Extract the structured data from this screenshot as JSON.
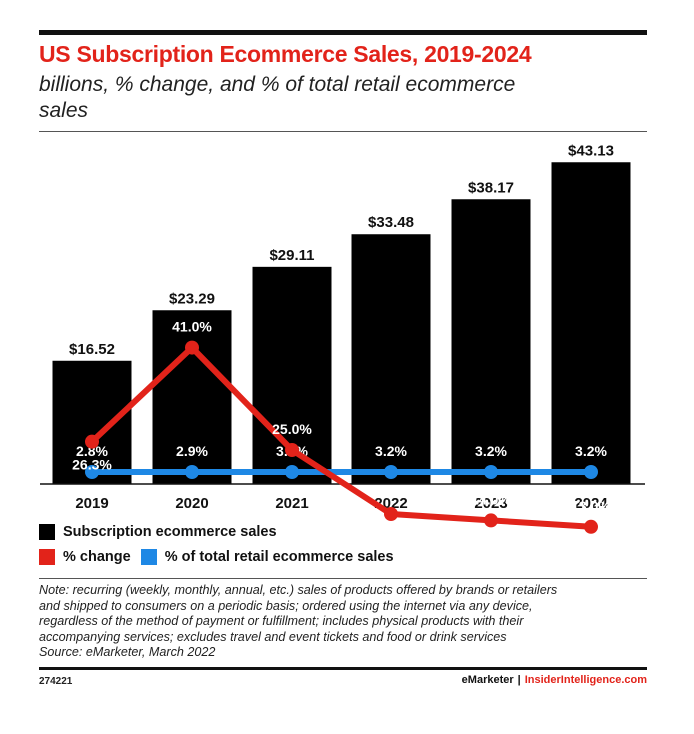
{
  "header": {
    "title": "US Subscription Ecommerce Sales, 2019-2024",
    "subtitle_line1": "billions, % change, and % of total retail ecommerce",
    "subtitle_line2": "sales"
  },
  "chart_data": {
    "type": "bar",
    "categories": [
      "2019",
      "2020",
      "2021",
      "2022",
      "2023",
      "2024"
    ],
    "series": [
      {
        "name": "Subscription ecommerce sales",
        "type": "bar",
        "values": [
          16.52,
          23.29,
          29.11,
          33.48,
          38.17,
          43.13
        ],
        "labels": [
          "$16.52",
          "$23.29",
          "$29.11",
          "$33.48",
          "$38.17",
          "$43.13"
        ],
        "color": "#000000"
      },
      {
        "name": "% change",
        "type": "line",
        "values": [
          26.3,
          41.0,
          25.0,
          15.0,
          14.0,
          13.0
        ],
        "labels": [
          "26.3%",
          "41.0%",
          "25.0%",
          "15.0%",
          "14.0%",
          "13.0%"
        ],
        "color": "#e2231a"
      },
      {
        "name": "% of total retail ecommerce sales",
        "type": "line",
        "values": [
          2.8,
          2.9,
          3.2,
          3.2,
          3.2,
          3.2
        ],
        "labels": [
          "2.8%",
          "2.9%",
          "3.2%",
          "3.2%",
          "3.2%",
          "3.2%"
        ],
        "color": "#1e88e5"
      }
    ],
    "grid": false,
    "legend_position": "bottom-left"
  },
  "legend": {
    "sales_label": "Subscription ecommerce sales",
    "change_label": "% change",
    "share_label": "% of total retail ecommerce sales"
  },
  "note": {
    "line1": "Note: recurring (weekly, monthly, annual, etc.) sales of products offered by brands or retailers",
    "line2": "and shipped to consumers on a periodic basis; ordered using the internet via any device,",
    "line3": "regardless of the method of payment or fulfillment; includes physical products with their",
    "line4": "accompanying services; excludes travel and event tickets and food or drink services",
    "source": "Source: eMarketer, March 2022"
  },
  "footer": {
    "chart_id": "274221",
    "brand_left": "eMarketer",
    "separator": "|",
    "brand_right": "InsiderIntelligence.com"
  },
  "colors": {
    "accent_red": "#e2231a",
    "bar_black": "#000000",
    "share_blue": "#1e88e5"
  }
}
